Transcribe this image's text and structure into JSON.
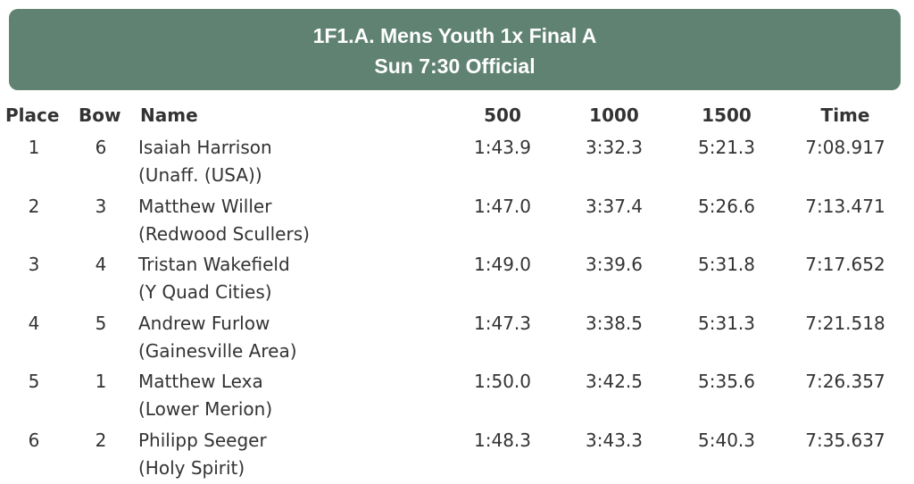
{
  "event": {
    "title": "1F1.A. Mens Youth 1x Final A",
    "subtitle": "Sun 7:30 Official",
    "banner_color": "#5f8273"
  },
  "columns": {
    "place": "Place",
    "bow": "Bow",
    "name": "Name",
    "split500": "500",
    "split1000": "1000",
    "split1500": "1500",
    "time": "Time"
  },
  "results": [
    {
      "place": "1",
      "bow": "6",
      "name": "Isaiah Harrison",
      "club": "(Unaff. (USA))",
      "split500": "1:43.9",
      "split1000": "3:32.3",
      "split1500": "5:21.3",
      "time": "7:08.917"
    },
    {
      "place": "2",
      "bow": "3",
      "name": "Matthew Willer",
      "club": "(Redwood Scullers)",
      "split500": "1:47.0",
      "split1000": "3:37.4",
      "split1500": "5:26.6",
      "time": "7:13.471"
    },
    {
      "place": "3",
      "bow": "4",
      "name": "Tristan Wakefield",
      "club": "(Y Quad Cities)",
      "split500": "1:49.0",
      "split1000": "3:39.6",
      "split1500": "5:31.8",
      "time": "7:17.652"
    },
    {
      "place": "4",
      "bow": "5",
      "name": "Andrew Furlow",
      "club": "(Gainesville Area)",
      "split500": "1:47.3",
      "split1000": "3:38.5",
      "split1500": "5:31.3",
      "time": "7:21.518"
    },
    {
      "place": "5",
      "bow": "1",
      "name": "Matthew Lexa",
      "club": "(Lower Merion)",
      "split500": "1:50.0",
      "split1000": "3:42.5",
      "split1500": "5:35.6",
      "time": "7:26.357"
    },
    {
      "place": "6",
      "bow": "2",
      "name": "Philipp Seeger",
      "club": "(Holy Spirit)",
      "split500": "1:48.3",
      "split1000": "3:43.3",
      "split1500": "5:40.3",
      "time": "7:35.637"
    }
  ]
}
